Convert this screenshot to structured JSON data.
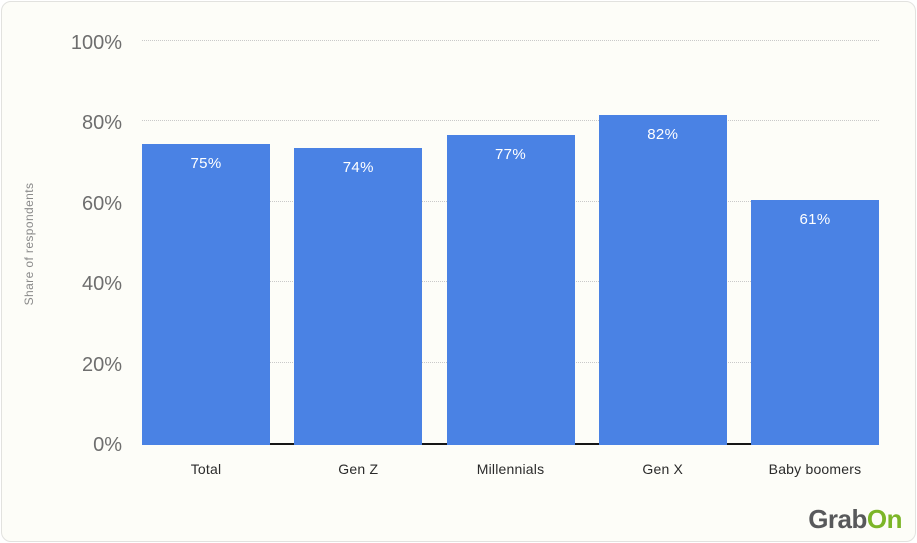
{
  "chart_data": {
    "type": "bar",
    "title": "",
    "xlabel": "",
    "ylabel": "Share of respondents",
    "categories": [
      "Total",
      "Gen Z",
      "Millennials",
      "Gen X",
      "Baby boomers"
    ],
    "values": [
      75,
      74,
      77,
      82,
      61
    ],
    "bar_labels": [
      "75%",
      "74%",
      "77%",
      "82%",
      "61%"
    ],
    "ylim": [
      0,
      100
    ],
    "yticks": [
      0,
      20,
      40,
      60,
      80,
      100
    ],
    "ytick_labels": [
      "0%",
      "20%",
      "40%",
      "60%",
      "80%",
      "100%"
    ],
    "legend": "none",
    "grid": "horizontal-dotted",
    "colors": {
      "bar": "#4a82e4",
      "bar_label": "#ffffff",
      "gridline": "#c9c9c9",
      "axis_line": "#161616",
      "tick_text": "#6e6e6e",
      "category_text": "#2b2b2b"
    }
  },
  "branding": {
    "logo": {
      "part1": "Grab",
      "part2": "On",
      "part1_color": "#58595b",
      "part2_color": "#7cb628"
    }
  }
}
